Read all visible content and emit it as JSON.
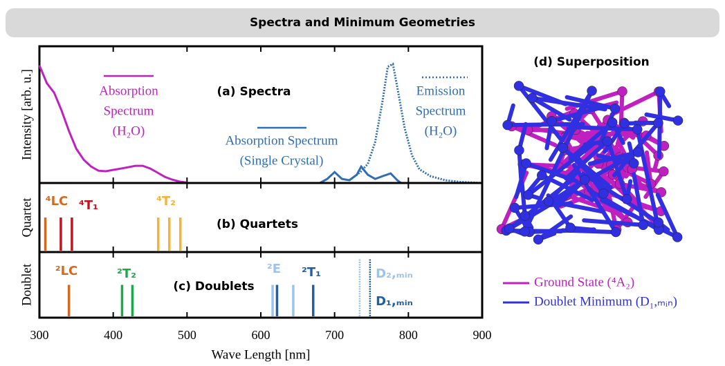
{
  "header": {
    "title": "Spectra and Minimum Geometries"
  },
  "chart_data": [
    {
      "type": "line",
      "title": "(a) Spectra",
      "ylabel": "Intensity [arb. u.]",
      "xlim": [
        300,
        900
      ],
      "ylim": [
        0,
        1
      ],
      "series": [
        {
          "name": [
            "Absorption",
            "Spectrum",
            "(H₂O)"
          ],
          "color": "#c020c0",
          "style": "solid",
          "x": [
            300,
            310,
            320,
            330,
            340,
            350,
            360,
            370,
            380,
            390,
            400,
            410,
            420,
            430,
            440,
            450,
            460,
            470,
            480,
            490,
            500
          ],
          "values": [
            0.86,
            0.73,
            0.66,
            0.53,
            0.38,
            0.25,
            0.17,
            0.12,
            0.09,
            0.086,
            0.096,
            0.105,
            0.115,
            0.126,
            0.126,
            0.106,
            0.076,
            0.045,
            0.025,
            0.01,
            0.003
          ]
        },
        {
          "name": [
            "Absorption Spectrum",
            "(Single Crystal)"
          ],
          "color": "#2f6db5",
          "style": "solid",
          "x": [
            680,
            690,
            700,
            710,
            720,
            730,
            736,
            745,
            755,
            765,
            776,
            785,
            790
          ],
          "values": [
            0,
            0.03,
            0.08,
            0.03,
            0.02,
            0.06,
            0.12,
            0.06,
            0.03,
            0.05,
            0.07,
            0.02,
            0
          ]
        },
        {
          "name": [
            "Emission",
            "Spectrum",
            "(H₂O)"
          ],
          "color": "#2f6db5",
          "style": "dotted",
          "x": [
            720,
            735,
            745,
            755,
            765,
            772,
            779,
            785,
            795,
            805,
            815,
            830,
            850,
            870,
            900
          ],
          "values": [
            0.02,
            0.08,
            0.14,
            0.3,
            0.6,
            0.85,
            0.87,
            0.7,
            0.4,
            0.2,
            0.1,
            0.05,
            0.02,
            0.008,
            0
          ]
        }
      ]
    },
    {
      "type": "stick",
      "title": "(b) Quartets",
      "ylabel": "Quartet",
      "xlim": [
        300,
        900
      ],
      "series": [
        {
          "name": "⁴LC",
          "color": "#d2691e",
          "style": "solid",
          "x": [
            308
          ]
        },
        {
          "name": "⁴T₁",
          "color": "#c0141e",
          "style": "solid",
          "x": [
            329,
            344
          ]
        },
        {
          "name": "⁴T₂",
          "color": "#f5b335",
          "style": "solid",
          "x": [
            461,
            476,
            491
          ]
        }
      ]
    },
    {
      "type": "stick",
      "title": "(c) Doublets",
      "ylabel": "Doublet",
      "xlabel": "Wave Length [nm]",
      "xlim": [
        300,
        900
      ],
      "xticks": [
        300,
        400,
        500,
        600,
        700,
        800,
        900
      ],
      "series": [
        {
          "name": "²LC",
          "color": "#d2691e",
          "style": "solid",
          "x": [
            340
          ]
        },
        {
          "name": "²T₂",
          "color": "#1aaa4a",
          "style": "solid",
          "x": [
            412,
            426
          ]
        },
        {
          "name": "²E",
          "color": "#9cc3f0",
          "style": "solid",
          "x": [
            616,
            644
          ]
        },
        {
          "name": "²T₁",
          "color": "#1f5fa8",
          "style": "solid",
          "x": [
            622,
            671
          ]
        },
        {
          "name": "D₂,ₘᵢₙ",
          "color": "#9cc3f0",
          "style": "dotted",
          "x": [
            734
          ]
        },
        {
          "name": "D₁,ₘᵢₙ",
          "color": "#1f5fa8",
          "style": "dotted",
          "x": [
            748
          ]
        }
      ]
    }
  ],
  "superposition": {
    "title": "(d) Superposition",
    "legend": [
      {
        "name": "Ground State (⁴A₂)",
        "color": "#c020c0"
      },
      {
        "name": "Doublet Minimum (D₁,ₘᵢₙ)",
        "color": "#3030e0"
      }
    ]
  }
}
